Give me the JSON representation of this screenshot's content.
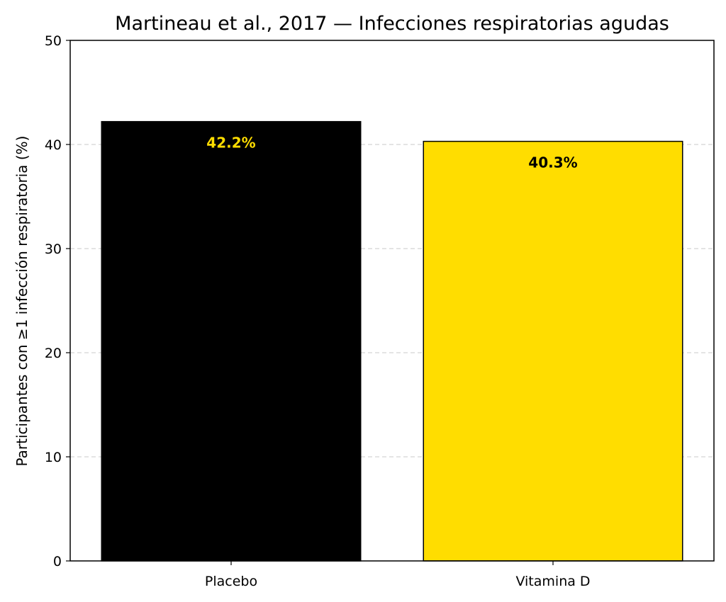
{
  "chart_data": {
    "type": "bar",
    "title": "Martineau et al., 2017 — Infecciones respiratorias agudas",
    "xlabel": "",
    "ylabel": "Participantes con ≥1 infección respiratoria (%)",
    "categories": [
      "Placebo",
      "Vitamina D"
    ],
    "values": [
      42.2,
      40.3
    ],
    "data_labels": [
      "42.2%",
      "40.3%"
    ],
    "bar_colors": [
      "#000000",
      "#FFDD00"
    ],
    "data_label_colors": [
      "#FFDD00",
      "#000000"
    ],
    "ylim": [
      0,
      50
    ],
    "yticks": [
      0,
      10,
      20,
      30,
      40,
      50
    ],
    "grid": "y-dashed",
    "legend": "none"
  }
}
